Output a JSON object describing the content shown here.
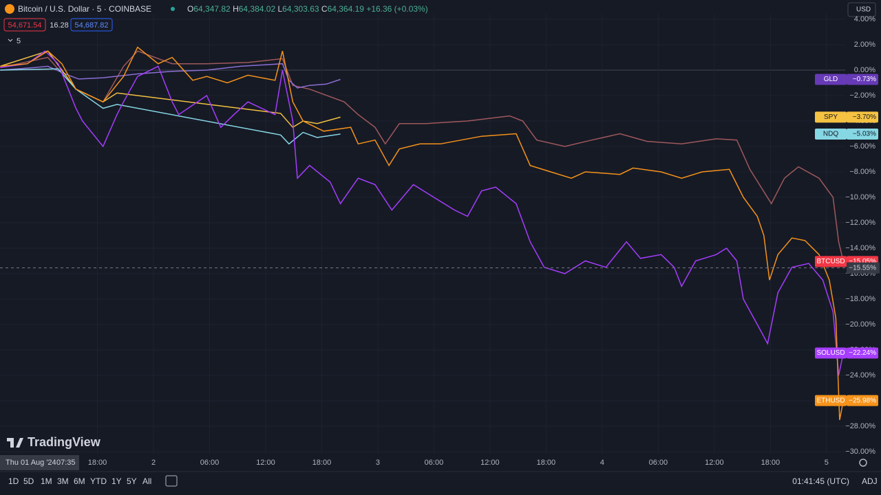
{
  "header": {
    "symbol": "Bitcoin / U.S. Dollar · 5 · COINBASE",
    "open_label": "O",
    "open": "64,347.82",
    "high_label": "H",
    "high": "64,384.02",
    "low_label": "L",
    "low": "64,303.63",
    "close_label": "C",
    "close": "64,364.19",
    "change": "+16.36 (+0.03%)",
    "bid": "54,671.54",
    "spread": "16.28",
    "ask": "54,687.82",
    "interval": "5",
    "currency": "USD"
  },
  "cursor": {
    "date": "Thu 01 Aug '24",
    "time": "07:35"
  },
  "logo": "TradingView",
  "footer": {
    "ranges": [
      "1D",
      "5D",
      "1M",
      "3M",
      "6M",
      "YTD",
      "1Y",
      "5Y",
      "All"
    ],
    "clock": "01:41:45 (UTC)",
    "adj": "ADJ"
  },
  "chart_data": {
    "type": "line",
    "xlim": [
      7.58,
      98
    ],
    "ylim": [
      -30.16,
      4.43
    ],
    "xticks": [
      {
        "value": 18,
        "label": "18:00"
      },
      {
        "value": 24,
        "label": "2"
      },
      {
        "value": 30,
        "label": "06:00"
      },
      {
        "value": 36,
        "label": "12:00"
      },
      {
        "value": 42,
        "label": "18:00"
      },
      {
        "value": 48,
        "label": "3"
      },
      {
        "value": 54,
        "label": "06:00"
      },
      {
        "value": 60,
        "label": "12:00"
      },
      {
        "value": 66,
        "label": "18:00"
      },
      {
        "value": 72,
        "label": "4"
      },
      {
        "value": 78,
        "label": "06:00"
      },
      {
        "value": 84,
        "label": "12:00"
      },
      {
        "value": 90,
        "label": "18:00"
      },
      {
        "value": 96,
        "label": "5"
      }
    ],
    "yticks": [
      {
        "value": 4,
        "label": "4.00%"
      },
      {
        "value": 2,
        "label": "2.00%"
      },
      {
        "value": 0,
        "label": "0.00%"
      },
      {
        "value": -2,
        "label": "−2.00%"
      },
      {
        "value": -4,
        "label": "−4.00%"
      },
      {
        "value": -6,
        "label": "−6.00%"
      },
      {
        "value": -8,
        "label": "−8.00%"
      },
      {
        "value": -10,
        "label": "−10.00%"
      },
      {
        "value": -12,
        "label": "−12.00%"
      },
      {
        "value": -14,
        "label": "−14.00%"
      },
      {
        "value": -16,
        "label": "−16.00%"
      },
      {
        "value": -18,
        "label": "−18.00%"
      },
      {
        "value": -20,
        "label": "−20.00%"
      },
      {
        "value": -22,
        "label": "−22.00%"
      },
      {
        "value": -24,
        "label": "−24.00%"
      },
      {
        "value": -26,
        "label": "−26.00%"
      },
      {
        "value": -28,
        "label": "−28.00%"
      },
      {
        "value": -30,
        "label": "−30.00%"
      }
    ],
    "crosshair": {
      "value": -15.55,
      "label": "−15.55%"
    },
    "series": [
      {
        "name": "BTCUSD",
        "color": "#a0595c",
        "tag_color": "#f23645",
        "end_label": "−15.05%",
        "x": [
          7.6,
          12.7,
          15.7,
          18.6,
          20.8,
          22.3,
          26.0,
          29.7,
          34.1,
          37.8,
          38.9,
          40.7,
          44.4,
          45.9,
          47.7,
          48.8,
          50.3,
          53.2,
          57.6,
          62.1,
          63.5,
          65.0,
          68.0,
          70.9,
          73.9,
          76.8,
          80.5,
          84.2,
          86.4,
          87.8,
          90.1,
          91.5,
          93.0,
          95.2,
          96.7,
          97.3,
          97.8
        ],
        "values": [
          0.2,
          1.0,
          -1.5,
          -2.5,
          0.3,
          1.5,
          0.5,
          0.5,
          0.6,
          0.9,
          -1.2,
          -1.5,
          -2.5,
          -3.5,
          -4.5,
          -5.8,
          -4.2,
          -4.2,
          -4.0,
          -3.6,
          -4.0,
          -5.5,
          -6.0,
          -5.5,
          -5.0,
          -5.6,
          -5.8,
          -5.4,
          -5.5,
          -7.8,
          -10.5,
          -8.5,
          -7.6,
          -8.5,
          -10.0,
          -13.5,
          -15.05
        ]
      },
      {
        "name": "GLD",
        "color": "#8c6fd6",
        "tag_color": "#673ab7",
        "end_label": "−0.73%",
        "x": [
          7.6,
          11.3,
          12.7,
          14.9,
          16.0,
          18.6,
          22.3,
          26.0,
          29.7,
          33.3,
          37.8,
          38.5,
          39.4,
          40.7,
          42.5,
          44.0
        ],
        "values": [
          0,
          0.2,
          0.3,
          -0.4,
          -0.7,
          -0.6,
          -0.3,
          -0.1,
          0.0,
          0.3,
          0.5,
          -0.8,
          -1.4,
          -1.2,
          -1.1,
          -0.73
        ]
      },
      {
        "name": "SPY",
        "color": "#f5c242",
        "tag_color": "#f5c242",
        "end_label": "−3.70%",
        "x": [
          7.6,
          12.7,
          15.7,
          18.6,
          20.1,
          37.6,
          38.9,
          40.0,
          41.5,
          44.0
        ],
        "values": [
          0.3,
          1.5,
          -1.5,
          -2.5,
          -1.8,
          -3.4,
          -4.5,
          -4.0,
          -4.2,
          -3.7
        ]
      },
      {
        "name": "NDQ",
        "color": "#86d7e4",
        "tag_color": "#86d7e4",
        "end_label": "−5.03%",
        "x": [
          7.6,
          13.8,
          15.7,
          18.6,
          20.1,
          37.6,
          38.5,
          40.0,
          41.5,
          44.0
        ],
        "values": [
          0,
          0.1,
          -1.5,
          -3.0,
          -2.7,
          -5.1,
          -5.8,
          -4.9,
          -5.3,
          -5.03
        ]
      },
      {
        "name": "SOLUSD",
        "color": "#a63dff",
        "tag_color": "#a63dff",
        "end_label": "−22.24%",
        "x": [
          7.6,
          10.5,
          12.4,
          13.8,
          15.7,
          16.4,
          18.6,
          20.1,
          20.8,
          22.3,
          24.5,
          26.0,
          26.7,
          29.7,
          31.2,
          32.6,
          34.1,
          37.0,
          37.8,
          38.9,
          39.4,
          40.7,
          42.9,
          44.0,
          45.9,
          47.7,
          49.5,
          51.8,
          54.0,
          56.2,
          57.6,
          59.1,
          60.6,
          62.8,
          64.3,
          65.8,
          68.0,
          70.2,
          72.4,
          74.6,
          76.1,
          78.3,
          79.7,
          80.5,
          82.0,
          84.2,
          85.3,
          86.4,
          87.1,
          88.6,
          89.7,
          90.8,
          92.3,
          94.1,
          95.6,
          96.7,
          97.3,
          97.8
        ],
        "values": [
          0.2,
          0.5,
          1.5,
          0.5,
          -3.0,
          -4.0,
          -6.0,
          -3.5,
          -2.5,
          -0.5,
          0.3,
          -2.5,
          -3.5,
          -2.0,
          -4.5,
          -3.5,
          -2.5,
          -3.5,
          0.0,
          -4.0,
          -8.5,
          -7.5,
          -8.8,
          -10.5,
          -8.5,
          -9.0,
          -11.0,
          -9.0,
          -10.0,
          -11.0,
          -11.5,
          -9.5,
          -9.2,
          -10.5,
          -13.5,
          -15.5,
          -16.0,
          -15.0,
          -15.5,
          -13.5,
          -14.8,
          -14.5,
          -15.5,
          -17.0,
          -15.0,
          -14.5,
          -14.0,
          -15.0,
          -18.0,
          -20.0,
          -21.5,
          -17.5,
          -15.5,
          -15.2,
          -16.5,
          -19.0,
          -24.0,
          -22.24
        ]
      },
      {
        "name": "ETHUSD",
        "color": "#f7931a",
        "tag_color": "#f7931a",
        "end_label": "−25.98%",
        "x": [
          7.6,
          10.5,
          12.7,
          14.2,
          15.7,
          18.6,
          20.8,
          22.3,
          24.5,
          26.0,
          28.2,
          29.7,
          31.9,
          34.1,
          37.0,
          37.8,
          38.9,
          40.0,
          42.2,
          45.1,
          45.9,
          47.7,
          49.2,
          50.3,
          52.5,
          54.7,
          59.1,
          62.8,
          64.3,
          66.5,
          68.7,
          70.2,
          73.9,
          75.3,
          78.3,
          80.5,
          82.7,
          85.6,
          87.1,
          88.6,
          89.3,
          89.9,
          90.8,
          92.3,
          93.7,
          95.2,
          96.3,
          97.0,
          97.4,
          97.8
        ],
        "values": [
          0.3,
          0.5,
          1.5,
          0.5,
          -1.5,
          -2.5,
          -0.5,
          1.8,
          0.5,
          1.0,
          -0.8,
          -0.5,
          -1.0,
          -0.4,
          -0.8,
          1.5,
          -2.5,
          -4.0,
          -4.8,
          -4.5,
          -5.8,
          -5.5,
          -7.5,
          -6.2,
          -5.8,
          -5.8,
          -5.2,
          -5.0,
          -7.5,
          -8.0,
          -8.5,
          -8.0,
          -8.2,
          -7.7,
          -8.0,
          -8.5,
          -8.0,
          -7.8,
          -10.0,
          -11.5,
          -13.0,
          -16.5,
          -14.5,
          -13.2,
          -13.4,
          -14.5,
          -16.5,
          -19.5,
          -27.5,
          -25.98
        ]
      }
    ]
  }
}
